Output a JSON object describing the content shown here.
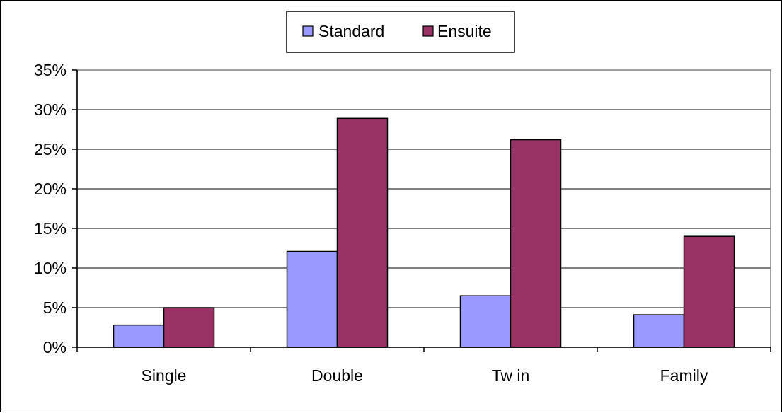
{
  "chart_data": {
    "type": "bar",
    "title": "",
    "xlabel": "",
    "ylabel": "",
    "categories": [
      "Single",
      "Double",
      "Tw in",
      "Family"
    ],
    "series": [
      {
        "name": "Standard",
        "values": [
          2.8,
          12.1,
          6.5,
          4.1
        ],
        "color": "#9999FF"
      },
      {
        "name": "Ensuite",
        "values": [
          5.0,
          28.9,
          26.2,
          14.0
        ],
        "color": "#993366"
      }
    ],
    "ylim": [
      0,
      35
    ],
    "y_ticks": [
      0,
      5,
      10,
      15,
      20,
      25,
      30,
      35
    ],
    "y_tick_labels": [
      "0%",
      "5%",
      "10%",
      "15%",
      "20%",
      "25%",
      "30%",
      "35%"
    ],
    "grid": true,
    "legend_position": "top-center",
    "colors": {
      "gridline": "#000000",
      "plot_border": "#808080",
      "bar_outline": "#000000"
    }
  }
}
